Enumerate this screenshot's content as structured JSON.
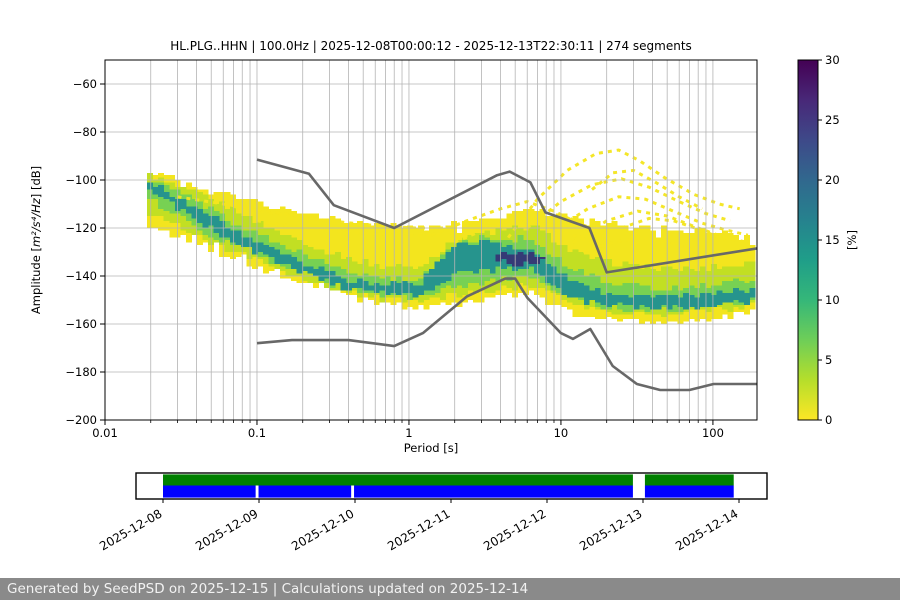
{
  "title": "HL.PLG..HHN | 100.0Hz | 2025-12-08T00:00:12 - 2025-12-13T22:30:11 | 274 segments",
  "axes": {
    "xlabel": "Period [s]",
    "ylabel_prefix": "Amplitude [",
    "ylabel_math": "m²/s⁴/Hz",
    "ylabel_suffix": "] [dB]",
    "xlim": [
      0.01,
      195
    ],
    "ylim": [
      -200,
      -50
    ],
    "xticks": {
      "values": [
        0.01,
        0.1,
        1,
        10,
        100
      ],
      "labels": [
        "0.01",
        "0.1",
        "1",
        "10",
        "100"
      ]
    },
    "yticks": {
      "values": [
        -60,
        -80,
        -100,
        -120,
        -140,
        -160,
        -180,
        -200
      ],
      "labels": [
        "−60",
        "−80",
        "−100",
        "−120",
        "−140",
        "−160",
        "−180",
        "−200"
      ]
    },
    "grid_color": "#b4b4b4"
  },
  "colorbar": {
    "label": "[%]",
    "min": 0,
    "max": 30,
    "ticks": {
      "values": [
        0,
        5,
        10,
        15,
        20,
        25,
        30
      ],
      "labels": [
        "0",
        "5",
        "10",
        "15",
        "20",
        "25",
        "30"
      ]
    },
    "gradient_bottom_to_top": [
      "#fde725",
      "#b5de2b",
      "#6ece58",
      "#35b779",
      "#1f9e89",
      "#26828e",
      "#31688e",
      "#3e4989",
      "#482878",
      "#440154"
    ]
  },
  "chart_data": {
    "type": "heatmap",
    "title": "PPSD probability density of station HL.PLG channel HHN",
    "meta": {
      "station_id": "HL.PLG..HHN",
      "sampling_rate": "100.0Hz",
      "time_start": "2025-12-08T00:00:12",
      "time_end": "2025-12-13T22:30:11",
      "segments": 274,
      "colormap": "viridis reversed: 0%=yellow, 30%=dark purple",
      "x_scale": "log",
      "grid": true
    },
    "density_bands": {
      "note": "probability cloud approximated as nested percent-level bands; dB envelopes vs period [s]",
      "levels": [
        {
          "pct": 2,
          "color": "#f3e51e",
          "periods": [
            0.019,
            0.03,
            0.05,
            0.08,
            0.13,
            0.22,
            0.4,
            0.7,
            1.2,
            2,
            3,
            4.5,
            6.5,
            9,
            13,
            20,
            30,
            50,
            80,
            120,
            190
          ],
          "top": [
            -96,
            -100,
            -104,
            -108,
            -111,
            -114,
            -117,
            -119,
            -120,
            -118,
            -117,
            -115,
            -111,
            -115,
            -116,
            -118,
            -119,
            -120,
            -121,
            -122,
            -124
          ],
          "bottom": [
            -119,
            -124,
            -129,
            -134,
            -139,
            -144,
            -149,
            -152,
            -153,
            -152,
            -150,
            -148,
            -147,
            -152,
            -156,
            -158,
            -159,
            -159,
            -158,
            -157,
            -155
          ]
        },
        {
          "pct": 5,
          "color": "#c2df23",
          "periods": [
            0.019,
            0.03,
            0.05,
            0.08,
            0.13,
            0.22,
            0.4,
            0.7,
            1.2,
            2,
            3,
            4.5,
            6.5,
            9,
            13,
            20,
            30,
            50,
            80,
            120,
            190
          ],
          "top": [
            -98,
            -103,
            -108,
            -114,
            -121,
            -127,
            -133,
            -136,
            -136,
            -125,
            -122,
            -121,
            -119,
            -125,
            -131,
            -134,
            -136,
            -137,
            -137,
            -136,
            -134
          ],
          "bottom": [
            -113,
            -119,
            -126,
            -131,
            -137,
            -142,
            -147,
            -150,
            -150,
            -148,
            -147,
            -145,
            -144,
            -148,
            -152,
            -155,
            -156,
            -156,
            -155,
            -154,
            -152
          ]
        },
        {
          "pct": 10,
          "color": "#77d153",
          "periods": [
            0.019,
            0.03,
            0.05,
            0.08,
            0.13,
            0.22,
            0.4,
            0.7,
            1.2,
            2,
            3,
            4.5,
            6.5,
            9,
            13,
            20,
            30,
            50,
            80,
            120,
            190
          ],
          "top": [
            -99.5,
            -105,
            -112,
            -120,
            -126,
            -132,
            -138,
            -141,
            -141,
            -127,
            -124,
            -125,
            -124,
            -132,
            -138,
            -142,
            -144,
            -145,
            -144,
            -143,
            -141
          ],
          "bottom": [
            -107,
            -115,
            -123,
            -128,
            -134,
            -140,
            -146,
            -148,
            -149,
            -144,
            -143,
            -141,
            -141,
            -146,
            -150,
            -153,
            -154,
            -154,
            -153,
            -152,
            -150
          ]
        },
        {
          "pct": 15,
          "color": "#26948d",
          "periods": [
            0.019,
            0.03,
            0.05,
            0.08,
            0.13,
            0.22,
            0.4,
            0.7,
            1.2,
            2,
            3,
            4.5,
            6.5,
            9,
            13,
            20,
            30,
            50,
            80,
            120,
            190
          ],
          "top": [
            -100.5,
            -107,
            -115,
            -123,
            -129.5,
            -135.5,
            -141.5,
            -143.5,
            -143,
            -127.5,
            -126,
            -128,
            -128,
            -136,
            -144,
            -147,
            -148,
            -149,
            -148,
            -147,
            -145
          ],
          "bottom": [
            -104.5,
            -111.5,
            -120,
            -127.5,
            -133.5,
            -139.5,
            -146,
            -147.5,
            -148,
            -139,
            -138,
            -137,
            -137,
            -144,
            -150,
            -152,
            -153,
            -153.5,
            -153,
            -152,
            -150
          ]
        },
        {
          "pct": 27,
          "color": "#353a76",
          "periods": [
            3.8,
            4.5,
            5.5,
            6.5,
            8
          ],
          "top": [
            -132,
            -130.5,
            -130,
            -130.5,
            -132.5
          ],
          "bottom": [
            -132.5,
            -134.5,
            -135.5,
            -135,
            -133
          ]
        }
      ]
    },
    "event_arcs": {
      "note": "scattered low-probability (yellow) PSD curves from transient events; [period s, dB] polylines",
      "color": "#f3e51e",
      "arcs": [
        [
          [
            4.5,
            -124
          ],
          [
            7,
            -108
          ],
          [
            11,
            -96
          ],
          [
            17,
            -89
          ],
          [
            24,
            -87.5
          ],
          [
            33,
            -92
          ],
          [
            48,
            -99
          ],
          [
            75,
            -106
          ],
          [
            110,
            -110
          ],
          [
            150,
            -112
          ]
        ],
        [
          [
            6,
            -120
          ],
          [
            10,
            -109
          ],
          [
            16,
            -102
          ],
          [
            25,
            -99.5
          ],
          [
            38,
            -103
          ],
          [
            60,
            -109
          ],
          [
            90,
            -114
          ],
          [
            130,
            -117
          ]
        ],
        [
          [
            9,
            -121
          ],
          [
            15,
            -112
          ],
          [
            24,
            -107
          ],
          [
            36,
            -108
          ],
          [
            55,
            -113
          ],
          [
            85,
            -118
          ],
          [
            125,
            -121
          ],
          [
            170,
            -123
          ]
        ],
        [
          [
            12,
            -126
          ],
          [
            20,
            -117
          ],
          [
            32,
            -113
          ],
          [
            50,
            -115
          ],
          [
            80,
            -120
          ],
          [
            120,
            -124
          ],
          [
            170,
            -126
          ]
        ],
        [
          [
            1.4,
            -123
          ],
          [
            2.4,
            -117
          ],
          [
            4,
            -112
          ],
          [
            6,
            -109
          ],
          [
            9,
            -113
          ],
          [
            13,
            -118
          ],
          [
            19,
            -122
          ]
        ],
        [
          [
            2,
            -126
          ],
          [
            3.3,
            -120
          ],
          [
            5,
            -116
          ],
          [
            7.5,
            -117
          ],
          [
            11,
            -122
          ],
          [
            16,
            -126
          ]
        ],
        [
          [
            0.07,
            -111
          ],
          [
            0.13,
            -114
          ],
          [
            0.3,
            -117
          ],
          [
            0.6,
            -119
          ],
          [
            1.1,
            -120
          ],
          [
            1.9,
            -120
          ]
        ],
        [
          [
            0.1,
            -117
          ],
          [
            0.2,
            -120
          ],
          [
            0.45,
            -122
          ],
          [
            0.9,
            -123
          ],
          [
            1.6,
            -123
          ]
        ],
        [
          [
            16,
            -104
          ],
          [
            22,
            -97
          ],
          [
            30,
            -96
          ],
          [
            42,
            -101
          ],
          [
            60,
            -107
          ],
          [
            85,
            -112
          ]
        ],
        [
          [
            25,
            -120
          ],
          [
            38,
            -116
          ],
          [
            55,
            -117
          ],
          [
            85,
            -121
          ],
          [
            120,
            -125
          ]
        ],
        [
          [
            0.03,
            -107
          ],
          [
            0.06,
            -110
          ],
          [
            0.12,
            -113
          ],
          [
            0.25,
            -116
          ]
        ],
        [
          [
            14,
            -130
          ],
          [
            22,
            -126
          ],
          [
            34,
            -124
          ],
          [
            52,
            -126
          ],
          [
            80,
            -130
          ]
        ]
      ]
    },
    "noise_models": {
      "color": "#686868",
      "nhnm": [
        [
          0.1,
          -91.5
        ],
        [
          0.22,
          -97.4
        ],
        [
          0.32,
          -110.5
        ],
        [
          0.8,
          -120
        ],
        [
          3.8,
          -98
        ],
        [
          4.6,
          -96.5
        ],
        [
          6.3,
          -101
        ],
        [
          7.9,
          -113.5
        ],
        [
          15.4,
          -120
        ],
        [
          20,
          -138.5
        ],
        [
          195,
          -128.5
        ]
      ],
      "nlnm": [
        [
          0.1,
          -168
        ],
        [
          0.17,
          -166.7
        ],
        [
          0.4,
          -166.7
        ],
        [
          0.8,
          -169.2
        ],
        [
          1.24,
          -163.7
        ],
        [
          2.4,
          -148.6
        ],
        [
          4.3,
          -141.1
        ],
        [
          5,
          -141.1
        ],
        [
          6,
          -149
        ],
        [
          10,
          -163.8
        ],
        [
          12,
          -166.2
        ],
        [
          15.6,
          -162.1
        ],
        [
          21.9,
          -177.5
        ],
        [
          31.6,
          -185
        ],
        [
          45,
          -187.5
        ],
        [
          70,
          -187.5
        ],
        [
          101,
          -185
        ],
        [
          195,
          -185
        ]
      ]
    }
  },
  "coverage": {
    "date_labels": [
      "2025-12-08",
      "2025-12-09",
      "2025-12-10",
      "2025-12-11",
      "2025-12-12",
      "2025-12-13",
      "2025-12-14"
    ],
    "green": "#008000",
    "blue": "#0000ff",
    "green_spans_days": [
      [
        0,
        4.895
      ],
      [
        5.02,
        5.945
      ]
    ],
    "blue_spans_days": [
      [
        0,
        0.965
      ],
      [
        0.995,
        1.96
      ],
      [
        1.99,
        4.895
      ],
      [
        5.02,
        5.945
      ]
    ]
  },
  "footer": {
    "text": "Generated by SeedPSD on 2025-12-15 | Calculations updated on 2025-12-14",
    "bg": "#8a8a8a"
  }
}
